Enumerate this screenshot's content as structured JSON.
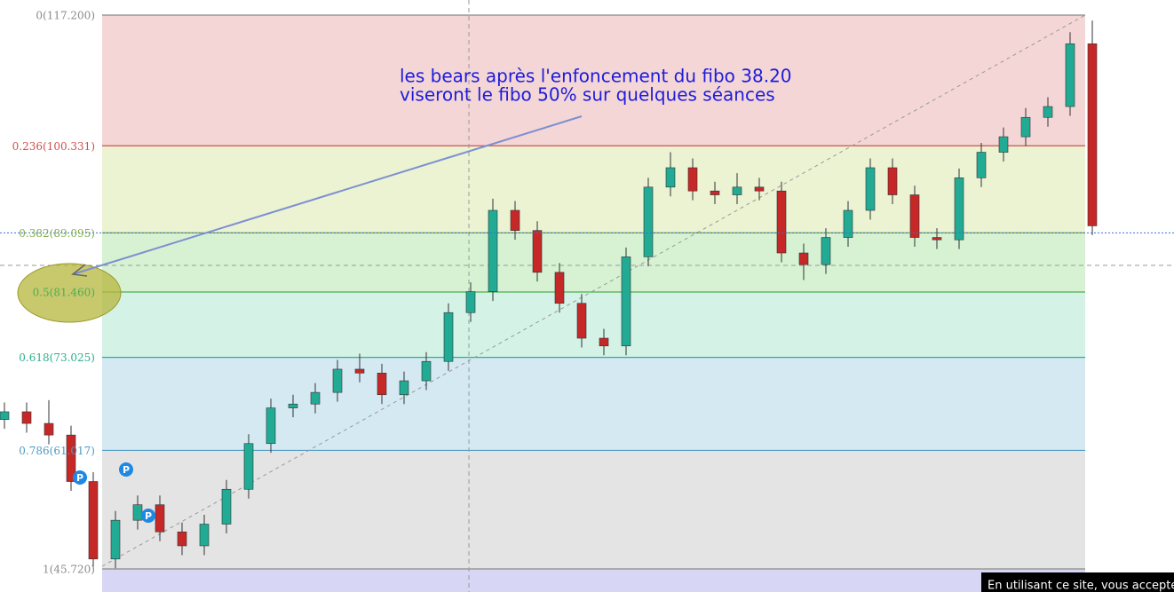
{
  "chart_data": {
    "type": "candlestick",
    "annotation": [
      "les bears après l'enfoncement du fibo 38.20",
      "viseront le fibo 50% sur quelques séances"
    ],
    "fib_levels": [
      {
        "value": 117.2,
        "label": "0(117.200)"
      },
      {
        "value": 100.331,
        "label": "0.236(100.331)"
      },
      {
        "value": 89.095,
        "label": "0.382(89.095)"
      },
      {
        "value": 81.46,
        "label": "0.5(81.460)"
      },
      {
        "value": 73.025,
        "label": "0.618(73.025)"
      },
      {
        "value": 61.017,
        "label": "0.786(61.017)"
      },
      {
        "value": 45.72,
        "label": "1(45.720)"
      }
    ],
    "fib_colors": [
      "#8a8a8a",
      "#d05050",
      "#7fae4a",
      "#4caf50",
      "#2fae8f",
      "#4f9ac4",
      "#8a8a8a"
    ],
    "zone_colors": [
      "#f4d6d6",
      "#ebf3d3",
      "#d6f2d3",
      "#d4f2e6",
      "#d5e9f3",
      "#e4e4e4",
      "#d7d6f4"
    ],
    "ylim": [
      42.74,
      119.15
    ],
    "up_color": "#22ab94",
    "down_color": "#c62828",
    "open": [
      65.0,
      66.0,
      64.5,
      63.0,
      57.0,
      47.0,
      52.0,
      54.0,
      50.5,
      48.7,
      51.5,
      56.0,
      61.9,
      66.5,
      67.0,
      68.5,
      71.5,
      71.0,
      68.2,
      70.0,
      72.5,
      78.8,
      81.5,
      92.0,
      89.4,
      84.0,
      80.0,
      75.5,
      74.5,
      86.0,
      95.0,
      97.5,
      94.5,
      94.0,
      95.0,
      94.5,
      86.5,
      85.0,
      88.5,
      92.0,
      97.5,
      94.0,
      88.5,
      88.2,
      96.2,
      99.5,
      101.5,
      104.0,
      105.4,
      113.5
    ],
    "high": [
      67.2,
      67.2,
      67.5,
      64.2,
      58.2,
      53.2,
      55.2,
      55.2,
      51.7,
      52.7,
      57.2,
      63.1,
      67.7,
      68.2,
      69.7,
      72.7,
      73.5,
      72.2,
      71.2,
      73.7,
      80.0,
      82.7,
      93.5,
      93.2,
      90.6,
      85.2,
      81.2,
      76.7,
      87.2,
      96.2,
      99.5,
      98.7,
      95.7,
      96.8,
      96.2,
      95.7,
      87.7,
      89.7,
      93.2,
      98.7,
      98.7,
      95.2,
      89.7,
      97.4,
      100.7,
      102.7,
      105.2,
      106.6,
      115.0,
      116.5
    ],
    "low": [
      63.8,
      63.3,
      61.8,
      55.8,
      45.8,
      45.8,
      50.8,
      49.3,
      47.5,
      47.5,
      50.3,
      54.8,
      60.7,
      65.3,
      65.8,
      67.3,
      69.8,
      67.0,
      67.0,
      68.8,
      71.3,
      77.6,
      80.3,
      88.2,
      82.8,
      78.8,
      74.3,
      73.3,
      73.3,
      84.8,
      93.8,
      93.3,
      92.8,
      92.8,
      93.3,
      85.3,
      83.0,
      83.8,
      87.3,
      90.8,
      92.8,
      87.3,
      87.0,
      87.0,
      95.0,
      98.3,
      100.3,
      102.8,
      104.2,
      88.8
    ],
    "close": [
      66.0,
      64.5,
      63.0,
      57.0,
      47.0,
      52.0,
      54.0,
      50.5,
      48.7,
      51.5,
      56.0,
      61.9,
      66.5,
      67.0,
      68.5,
      71.5,
      71.0,
      68.2,
      70.0,
      72.5,
      78.8,
      81.5,
      92.0,
      89.4,
      84.0,
      80.0,
      75.5,
      74.5,
      86.0,
      95.0,
      97.5,
      94.5,
      94.0,
      95.0,
      94.5,
      86.5,
      85.0,
      88.5,
      92.0,
      97.5,
      94.0,
      88.5,
      88.2,
      96.2,
      99.5,
      101.5,
      104.0,
      105.4,
      113.5,
      90.0
    ],
    "markers": [
      "P",
      "P",
      "P"
    ],
    "notice": "En utilisant ce site, vous acceptez"
  }
}
